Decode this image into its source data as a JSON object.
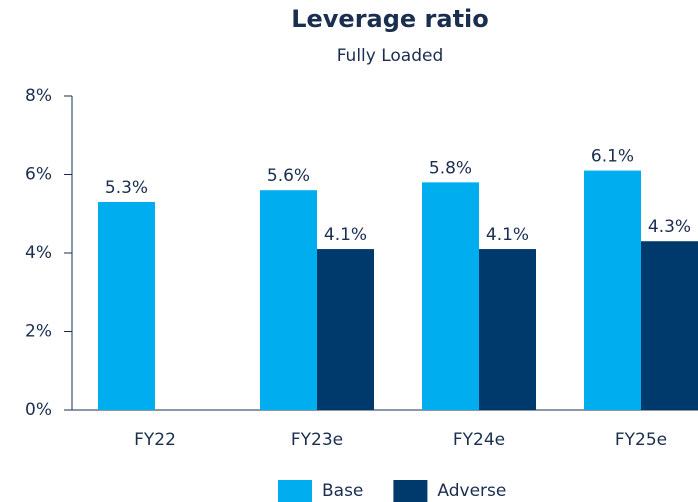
{
  "chart_data": {
    "type": "bar",
    "title": "Leverage ratio",
    "subtitle": "Fully Loaded",
    "categories": [
      "FY22",
      "FY23e",
      "FY24e",
      "FY25e"
    ],
    "series": [
      {
        "name": "Base",
        "color": "#00aeef",
        "values": [
          5.3,
          5.6,
          5.8,
          6.1
        ],
        "value_labels": [
          "5.3%",
          "5.6%",
          "5.8%",
          "6.1%"
        ]
      },
      {
        "name": "Adverse",
        "color": "#003a6c",
        "values": [
          null,
          4.1,
          4.1,
          4.3
        ],
        "value_labels": [
          null,
          "4.1%",
          "4.1%",
          "4.3%"
        ]
      }
    ],
    "ylim": [
      0,
      8
    ],
    "yticks": [
      {
        "value": 0,
        "label": "0%"
      },
      {
        "value": 2,
        "label": "2%"
      },
      {
        "value": 4,
        "label": "4%"
      },
      {
        "value": 6,
        "label": "6%"
      },
      {
        "value": 8,
        "label": "8%"
      }
    ],
    "legend": "bottom"
  }
}
